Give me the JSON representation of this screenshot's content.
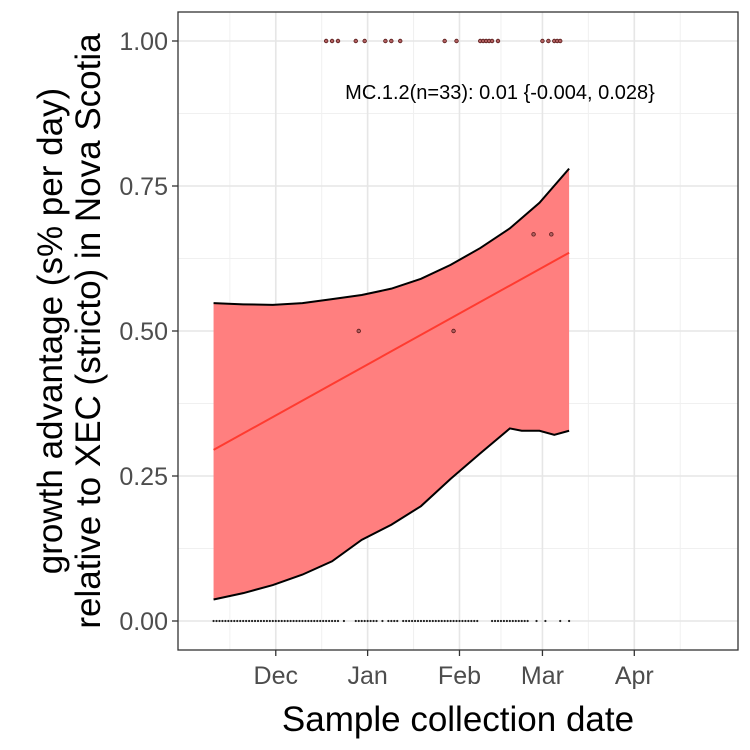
{
  "chart_data": {
    "type": "line",
    "xlabel": "Sample collection date",
    "ylabel_lines": [
      "growth advantage (s% per day)",
      "relative to XEC (stricto) in Nova Scotia"
    ],
    "annotation": "MC.1.2(n=33): 0.01 {-0.004, 0.028}",
    "x_range": [
      "2024-10-29",
      "2025-05-06"
    ],
    "ylim": [
      -0.05,
      1.05
    ],
    "x_ticks": [
      {
        "date": "2024-12-01",
        "label": "Dec"
      },
      {
        "date": "2025-01-01",
        "label": "Jan"
      },
      {
        "date": "2025-02-01",
        "label": "Feb"
      },
      {
        "date": "2025-03-01",
        "label": "Mar"
      },
      {
        "date": "2025-04-01",
        "label": "Apr"
      }
    ],
    "y_ticks": [
      {
        "value": 0.0,
        "label": "0.00"
      },
      {
        "value": 0.25,
        "label": "0.25"
      },
      {
        "value": 0.5,
        "label": "0.50"
      },
      {
        "value": 0.75,
        "label": "0.75"
      },
      {
        "value": 1.0,
        "label": "1.00"
      }
    ],
    "grid": true,
    "colors": {
      "ribbon": "#ff7f7f",
      "fit_line": "#ff3b30",
      "ci_line": "#000000",
      "point": "#5a1a1a"
    },
    "series": [
      {
        "name": "MC.1.2",
        "kind": "fit",
        "x": [
          "2024-11-10",
          "2025-03-10"
        ],
        "y": [
          0.295,
          0.635
        ]
      },
      {
        "kind": "upper_ci",
        "x": [
          "2024-11-10",
          "2024-11-20",
          "2024-11-30",
          "2024-12-10",
          "2024-12-20",
          "2024-12-30",
          "2025-01-09",
          "2025-01-19",
          "2025-01-29",
          "2025-02-08",
          "2025-02-18",
          "2025-02-28",
          "2025-03-10"
        ],
        "y": [
          0.548,
          0.546,
          0.545,
          0.548,
          0.555,
          0.562,
          0.573,
          0.59,
          0.614,
          0.643,
          0.677,
          0.721,
          0.78
        ]
      },
      {
        "kind": "lower_ci",
        "x": [
          "2024-11-10",
          "2024-11-20",
          "2024-11-30",
          "2024-12-10",
          "2024-12-20",
          "2024-12-30",
          "2025-01-09",
          "2025-01-19",
          "2025-01-29",
          "2025-02-08",
          "2025-02-18",
          "2025-02-22",
          "2025-02-28",
          "2025-03-05",
          "2025-03-10"
        ],
        "y": [
          0.037,
          0.048,
          0.062,
          0.08,
          0.103,
          0.14,
          0.166,
          0.198,
          0.245,
          0.289,
          0.332,
          0.328,
          0.328,
          0.321,
          0.328
        ]
      },
      {
        "kind": "observations",
        "points": [
          {
            "x": "2024-12-18",
            "y": 1.0
          },
          {
            "x": "2024-12-20",
            "y": 1.0
          },
          {
            "x": "2024-12-22",
            "y": 1.0
          },
          {
            "x": "2024-12-28",
            "y": 1.0
          },
          {
            "x": "2024-12-31",
            "y": 1.0
          },
          {
            "x": "2025-01-07",
            "y": 1.0
          },
          {
            "x": "2025-01-09",
            "y": 1.0
          },
          {
            "x": "2025-01-12",
            "y": 1.0
          },
          {
            "x": "2025-01-27",
            "y": 1.0
          },
          {
            "x": "2025-01-31",
            "y": 1.0
          },
          {
            "x": "2025-02-08",
            "y": 1.0
          },
          {
            "x": "2025-02-09",
            "y": 1.0
          },
          {
            "x": "2025-02-10",
            "y": 1.0
          },
          {
            "x": "2025-02-11",
            "y": 1.0
          },
          {
            "x": "2025-02-12",
            "y": 1.0
          },
          {
            "x": "2025-02-14",
            "y": 1.0
          },
          {
            "x": "2025-03-01",
            "y": 1.0
          },
          {
            "x": "2025-03-03",
            "y": 1.0
          },
          {
            "x": "2025-03-05",
            "y": 1.0
          },
          {
            "x": "2025-03-06",
            "y": 1.0
          },
          {
            "x": "2025-03-07",
            "y": 1.0
          },
          {
            "x": "2025-02-26",
            "y": 0.6667
          },
          {
            "x": "2025-03-04",
            "y": 0.6667
          },
          {
            "x": "2024-12-29",
            "y": 0.5
          },
          {
            "x": "2025-01-30",
            "y": 0.5
          }
        ],
        "zero_runs": [
          {
            "from": "2024-11-10",
            "to": "2024-12-22"
          },
          {
            "from": "2024-12-28",
            "to": "2025-01-04"
          },
          {
            "from": "2025-01-08",
            "to": "2025-01-11"
          },
          {
            "from": "2025-01-14",
            "to": "2025-02-07"
          },
          {
            "from": "2025-02-12",
            "to": "2025-02-24"
          }
        ],
        "zero_points": [
          "2024-12-24",
          "2025-01-06",
          "2025-01-13",
          "2025-02-27",
          "2025-03-02",
          "2025-03-07",
          "2025-03-10"
        ]
      }
    ]
  }
}
